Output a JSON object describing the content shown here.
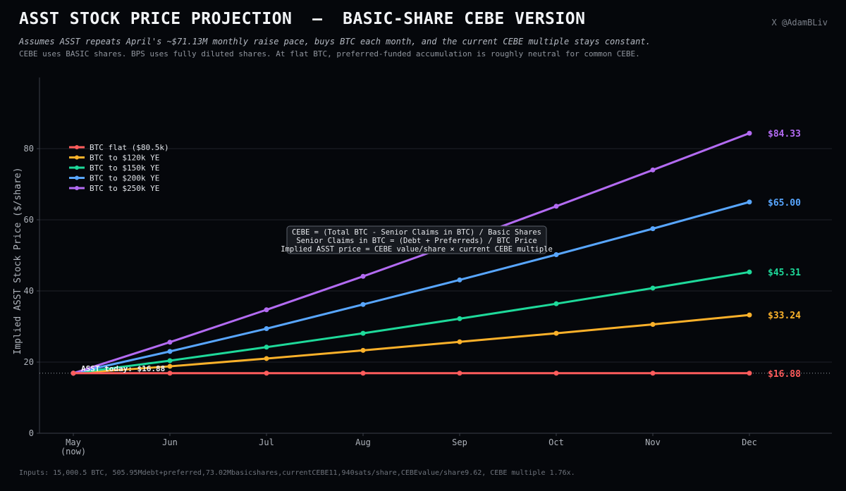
{
  "header": {
    "title": "ASST STOCK PRICE PROJECTION  —  BASIC-SHARE CEBE VERSION",
    "handle": "X @AdamBLiv",
    "subtitle": "Assumes ASST repeats April's ~$71.13M monthly raise pace, buys BTC each month, and the current CEBE multiple stays constant.",
    "subtitle2": "CEBE uses BASIC shares. BPS uses fully diluted shares. At flat BTC, preferred-funded accumulation is roughly neutral for common CEBE."
  },
  "footer": "Inputs: 15,000.5 BTC, 505.95Mdebt+preferred,73.02Mbasicshares,currentCEBE11,940sats/share,CEBEvalue/share9.62, CEBE multiple 1.76x.",
  "annotation_box": {
    "line1": "CEBE = (Total BTC - Senior Claims in BTC) / Basic Shares",
    "line2": "Senior Claims in BTC = (Debt + Preferreds) / BTC Price",
    "line3": "Implied ASST price = CEBE value/share × current CEBE multiple"
  },
  "today_label": "ASST today: $16.88",
  "chart_data": {
    "type": "line",
    "title": "ASST STOCK PRICE PROJECTION  —  BASIC-SHARE CEBE VERSION",
    "xlabel": "",
    "ylabel": "Implied ASST Stock Price ($/share)",
    "categories": [
      "May\n(now)",
      "Jun",
      "Jul",
      "Aug",
      "Sep",
      "Oct",
      "Nov",
      "Dec"
    ],
    "ylim": [
      0,
      100
    ],
    "yticks": [
      0,
      20,
      40,
      60,
      80
    ],
    "grid": true,
    "legend_position": "top-left",
    "reference_line": 16.88,
    "series": [
      {
        "name": "BTC flat ($80.5k)",
        "color": "#ff5c5c",
        "values": [
          16.88,
          16.88,
          16.88,
          16.88,
          16.88,
          16.88,
          16.88,
          16.88
        ],
        "end_label": "$16.88"
      },
      {
        "name": "BTC to $120k YE",
        "color": "#fbb12a",
        "values": [
          16.88,
          18.8,
          21.0,
          23.3,
          25.7,
          28.1,
          30.6,
          33.24
        ],
        "end_label": "$33.24"
      },
      {
        "name": "BTC to $150k YE",
        "color": "#1ed99a",
        "values": [
          16.88,
          20.4,
          24.2,
          28.1,
          32.2,
          36.4,
          40.8,
          45.31
        ],
        "end_label": "$45.31"
      },
      {
        "name": "BTC to $200k YE",
        "color": "#58a6ff",
        "values": [
          16.88,
          23.0,
          29.4,
          36.2,
          43.1,
          50.2,
          57.5,
          65.0
        ],
        "end_label": "$65.00"
      },
      {
        "name": "BTC to $250k YE",
        "color": "#b36bf2",
        "values": [
          16.88,
          25.6,
          34.7,
          44.1,
          53.8,
          63.8,
          74.0,
          84.33
        ],
        "end_label": "$84.33"
      }
    ]
  }
}
